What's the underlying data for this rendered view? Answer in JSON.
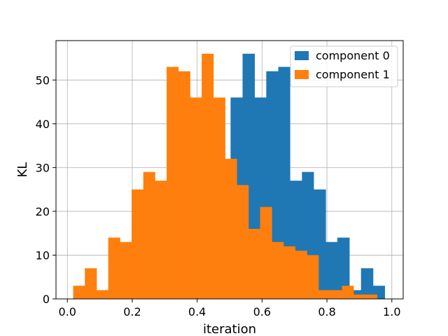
{
  "chart_data": {
    "type": "bar",
    "title": "",
    "xlabel": "iteration",
    "ylabel": "KL",
    "xlim": [
      -0.035,
      1.035
    ],
    "ylim": [
      0,
      59
    ],
    "x_ticks": [
      0.0,
      0.2,
      0.4,
      0.6,
      0.8,
      1.0
    ],
    "x_tick_labels": [
      "0.0",
      "0.2",
      "0.4",
      "0.6",
      "0.8",
      "1.0"
    ],
    "y_ticks": [
      0,
      10,
      20,
      30,
      40,
      50
    ],
    "y_tick_labels": [
      "0",
      "10",
      "20",
      "30",
      "40",
      "50"
    ],
    "grid": true,
    "legend_position": "top-right",
    "series": [
      {
        "name": "component 0",
        "color": "#1f77b4",
        "bins": [
          [
            0.503,
            0.54,
            46
          ],
          [
            0.54,
            0.577,
            56
          ],
          [
            0.577,
            0.613,
            46
          ],
          [
            0.613,
            0.65,
            52
          ],
          [
            0.65,
            0.686,
            53
          ],
          [
            0.686,
            0.723,
            27
          ],
          [
            0.723,
            0.759,
            29
          ],
          [
            0.759,
            0.796,
            25
          ],
          [
            0.796,
            0.832,
            13
          ],
          [
            0.832,
            0.869,
            14
          ],
          [
            0.869,
            0.905,
            2
          ],
          [
            0.905,
            0.942,
            7
          ],
          [
            0.942,
            0.978,
            3
          ]
        ]
      },
      {
        "name": "component 1",
        "color": "#ff7f0e",
        "bins": [
          [
            0.018,
            0.054,
            3
          ],
          [
            0.054,
            0.09,
            7
          ],
          [
            0.09,
            0.126,
            2
          ],
          [
            0.126,
            0.162,
            14
          ],
          [
            0.162,
            0.198,
            13
          ],
          [
            0.198,
            0.234,
            25
          ],
          [
            0.234,
            0.27,
            29
          ],
          [
            0.27,
            0.306,
            27
          ],
          [
            0.306,
            0.342,
            53
          ],
          [
            0.342,
            0.378,
            52
          ],
          [
            0.378,
            0.414,
            46
          ],
          [
            0.414,
            0.45,
            56
          ],
          [
            0.45,
            0.486,
            46
          ],
          [
            0.486,
            0.522,
            32
          ],
          [
            0.522,
            0.558,
            26
          ],
          [
            0.558,
            0.594,
            16
          ],
          [
            0.594,
            0.63,
            21
          ],
          [
            0.63,
            0.666,
            13
          ],
          [
            0.666,
            0.702,
            12
          ],
          [
            0.702,
            0.738,
            11
          ],
          [
            0.738,
            0.774,
            10
          ],
          [
            0.774,
            0.81,
            2
          ],
          [
            0.81,
            0.846,
            2
          ],
          [
            0.846,
            0.882,
            3
          ],
          [
            0.882,
            0.918,
            1
          ],
          [
            0.918,
            0.954,
            1
          ]
        ]
      }
    ]
  }
}
